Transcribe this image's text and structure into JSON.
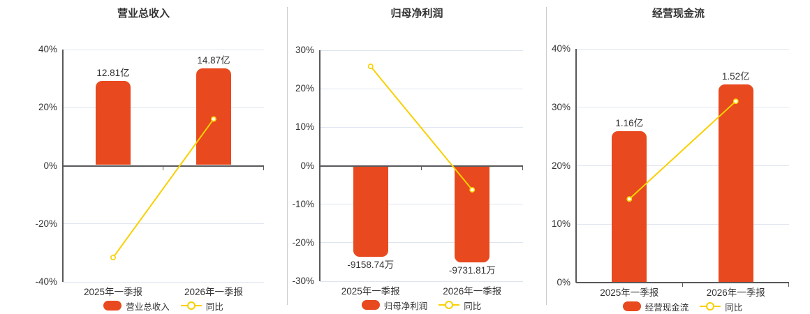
{
  "colors": {
    "bar": "#e8491f",
    "line": "#f8d000",
    "grid": "#dfe5ef",
    "axis": "#58595b",
    "text": "#333333",
    "divider": "#cccccc",
    "background": "#ffffff",
    "marker_fill": "#ffffff"
  },
  "chart_data": [
    {
      "type": "bar+line",
      "title": "营业总收入",
      "categories": [
        "2025年一季报",
        "2026年一季报"
      ],
      "bar_series": {
        "name": "营业总收入",
        "unit": "亿",
        "values": [
          12.81,
          14.87
        ],
        "labels": [
          "12.81亿",
          "14.87亿"
        ],
        "display_height_pct": [
          29.3,
          33.6
        ],
        "label_side": [
          "above",
          "above"
        ]
      },
      "line_series": {
        "name": "同比",
        "unit": "%",
        "values": [
          -31.6,
          16.08
        ]
      },
      "axis": {
        "min": -40,
        "max": 40,
        "step": 20,
        "format": "percent"
      },
      "legend_position": "bottom"
    },
    {
      "type": "bar+line",
      "title": "归母净利润",
      "categories": [
        "2025年一季报",
        "2026年一季报"
      ],
      "bar_series": {
        "name": "归母净利润",
        "unit": "万",
        "values": [
          -9158.74,
          -9731.81
        ],
        "labels": [
          "-9158.74万",
          "-9731.81万"
        ],
        "display_height_pct": [
          -23.6,
          -25.1
        ],
        "label_side": [
          "below",
          "below"
        ]
      },
      "line_series": {
        "name": "同比",
        "unit": "%",
        "values": [
          25.8,
          -6.26
        ]
      },
      "axis": {
        "min": -30,
        "max": 30,
        "step": 10,
        "format": "percent"
      },
      "legend_position": "bottom"
    },
    {
      "type": "bar+line",
      "title": "经营现金流",
      "categories": [
        "2025年一季报",
        "2026年一季报"
      ],
      "bar_series": {
        "name": "经营现金流",
        "unit": "亿",
        "values": [
          1.16,
          1.52
        ],
        "labels": [
          "1.16亿",
          "1.52亿"
        ],
        "display_height_pct": [
          25.9,
          33.9
        ],
        "label_side": [
          "above",
          "above"
        ]
      },
      "line_series": {
        "name": "同比",
        "unit": "%",
        "values": [
          14.3,
          31.03
        ]
      },
      "axis": {
        "min": 0,
        "max": 40,
        "step": 10,
        "format": "percent"
      },
      "legend_position": "bottom"
    }
  ]
}
